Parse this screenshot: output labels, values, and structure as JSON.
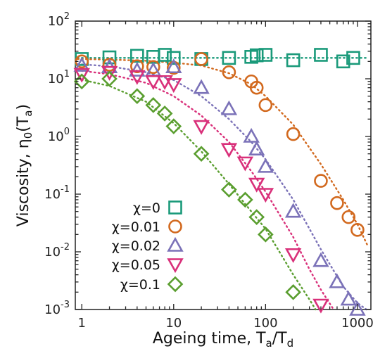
{
  "chart_data": {
    "type": "scatter",
    "title": "",
    "xlabel": {
      "main": "Ageing time, T",
      "sub1": "a",
      "mid": "/T",
      "sub2": "d"
    },
    "ylabel": {
      "main": "Viscosity, η",
      "sub1": "0",
      "mid": "(T",
      "sub2": "a",
      "end": ")"
    },
    "xscale": "log",
    "yscale": "log",
    "xlim": [
      0.85,
      1400
    ],
    "ylim": [
      0.001,
      100
    ],
    "x_ticks": [
      {
        "value": 1,
        "label": "1"
      },
      {
        "value": 10,
        "label": "10"
      },
      {
        "value": 100,
        "label": "100"
      },
      {
        "value": 1000,
        "label": "1000"
      }
    ],
    "y_ticks": [
      {
        "value": 0.001,
        "base": "10",
        "exp": "-3"
      },
      {
        "value": 0.01,
        "base": "10",
        "exp": "-2"
      },
      {
        "value": 0.1,
        "base": "10",
        "exp": "-1"
      },
      {
        "value": 1,
        "base": "10",
        "exp": "0"
      },
      {
        "value": 10,
        "base": "10",
        "exp": "1"
      },
      {
        "value": 100,
        "base": "10",
        "exp": "2"
      }
    ],
    "grid": false,
    "legend_position": "bottom-left",
    "series": [
      {
        "name": "χ=0",
        "marker": "square",
        "color": "#1a9a7a",
        "points": [
          [
            1,
            22
          ],
          [
            2,
            23.5
          ],
          [
            4,
            25
          ],
          [
            6,
            24
          ],
          [
            8,
            26
          ],
          [
            10,
            23
          ],
          [
            20,
            22
          ],
          [
            40,
            23
          ],
          [
            70,
            24
          ],
          [
            80,
            25.5
          ],
          [
            100,
            26
          ],
          [
            200,
            21
          ],
          [
            400,
            26
          ],
          [
            700,
            20
          ],
          [
            900,
            23
          ]
        ],
        "fit": [
          [
            0.9,
            23
          ],
          [
            1300,
            23
          ]
        ]
      },
      {
        "name": "χ=0.01",
        "marker": "circle",
        "color": "#d2691e",
        "points": [
          [
            1,
            20
          ],
          [
            2,
            17.5
          ],
          [
            4,
            16.5
          ],
          [
            6,
            16
          ],
          [
            10,
            15.5
          ],
          [
            20,
            22
          ],
          [
            40,
            13
          ],
          [
            70,
            9
          ],
          [
            80,
            7
          ],
          [
            100,
            3.5
          ],
          [
            200,
            1.1
          ],
          [
            400,
            0.17
          ],
          [
            600,
            0.07
          ],
          [
            800,
            0.04
          ],
          [
            1000,
            0.024
          ]
        ],
        "fit": [
          [
            0.9,
            22
          ],
          [
            2,
            21.5
          ],
          [
            5,
            20.5
          ],
          [
            10,
            19
          ],
          [
            20,
            17
          ],
          [
            40,
            12.5
          ],
          [
            70,
            8
          ],
          [
            100,
            5
          ],
          [
            200,
            1.6
          ],
          [
            400,
            0.33
          ],
          [
            700,
            0.08
          ],
          [
            1000,
            0.03
          ],
          [
            1300,
            0.0125
          ]
        ]
      },
      {
        "name": "χ=0.02",
        "marker": "triangle-up",
        "color": "#7b72b8",
        "points": [
          [
            1,
            17
          ],
          [
            2,
            16
          ],
          [
            4,
            14
          ],
          [
            6,
            14
          ],
          [
            10,
            16
          ],
          [
            20,
            7
          ],
          [
            40,
            3
          ],
          [
            70,
            1
          ],
          [
            80,
            0.6
          ],
          [
            100,
            0.3
          ],
          [
            200,
            0.05
          ],
          [
            400,
            0.007
          ],
          [
            600,
            0.003
          ],
          [
            800,
            0.0015
          ],
          [
            1000,
            0.001
          ]
        ],
        "fit": [
          [
            0.9,
            18
          ],
          [
            2,
            16.5
          ],
          [
            5,
            13
          ],
          [
            10,
            9.5
          ],
          [
            20,
            5
          ],
          [
            40,
            2
          ],
          [
            70,
            0.8
          ],
          [
            100,
            0.4
          ],
          [
            200,
            0.08
          ],
          [
            400,
            0.011
          ],
          [
            700,
            0.0025
          ],
          [
            1000,
            0.0013
          ],
          [
            1250,
            0.001
          ]
        ]
      },
      {
        "name": "χ=0.05",
        "marker": "triangle-down",
        "color": "#d9307a",
        "points": [
          [
            1,
            12
          ],
          [
            2,
            13
          ],
          [
            4,
            11
          ],
          [
            6,
            9
          ],
          [
            8,
            9
          ],
          [
            10,
            8
          ],
          [
            20,
            1.5
          ],
          [
            40,
            0.6
          ],
          [
            60,
            0.35
          ],
          [
            80,
            0.15
          ],
          [
            100,
            0.1
          ],
          [
            200,
            0.009
          ],
          [
            400,
            0.0012
          ]
        ],
        "fit": [
          [
            0.9,
            14
          ],
          [
            2,
            12
          ],
          [
            5,
            8.5
          ],
          [
            10,
            5
          ],
          [
            20,
            2.3
          ],
          [
            40,
            0.8
          ],
          [
            70,
            0.25
          ],
          [
            100,
            0.11
          ],
          [
            200,
            0.018
          ],
          [
            300,
            0.005
          ],
          [
            400,
            0.0022
          ],
          [
            550,
            0.001
          ]
        ]
      },
      {
        "name": "χ=0.1",
        "marker": "diamond",
        "color": "#5a9e2f",
        "points": [
          [
            1,
            9
          ],
          [
            2,
            10
          ],
          [
            4,
            5
          ],
          [
            6,
            3.5
          ],
          [
            8,
            2.5
          ],
          [
            10,
            1.5
          ],
          [
            20,
            0.5
          ],
          [
            40,
            0.12
          ],
          [
            60,
            0.08
          ],
          [
            80,
            0.04
          ],
          [
            100,
            0.02
          ],
          [
            200,
            0.002
          ]
        ],
        "fit": [
          [
            0.9,
            10
          ],
          [
            2,
            7.5
          ],
          [
            5,
            4
          ],
          [
            10,
            1.7
          ],
          [
            20,
            0.55
          ],
          [
            40,
            0.15
          ],
          [
            70,
            0.05
          ],
          [
            100,
            0.025
          ],
          [
            200,
            0.004
          ],
          [
            300,
            0.0015
          ],
          [
            350,
            0.001
          ]
        ]
      }
    ]
  }
}
